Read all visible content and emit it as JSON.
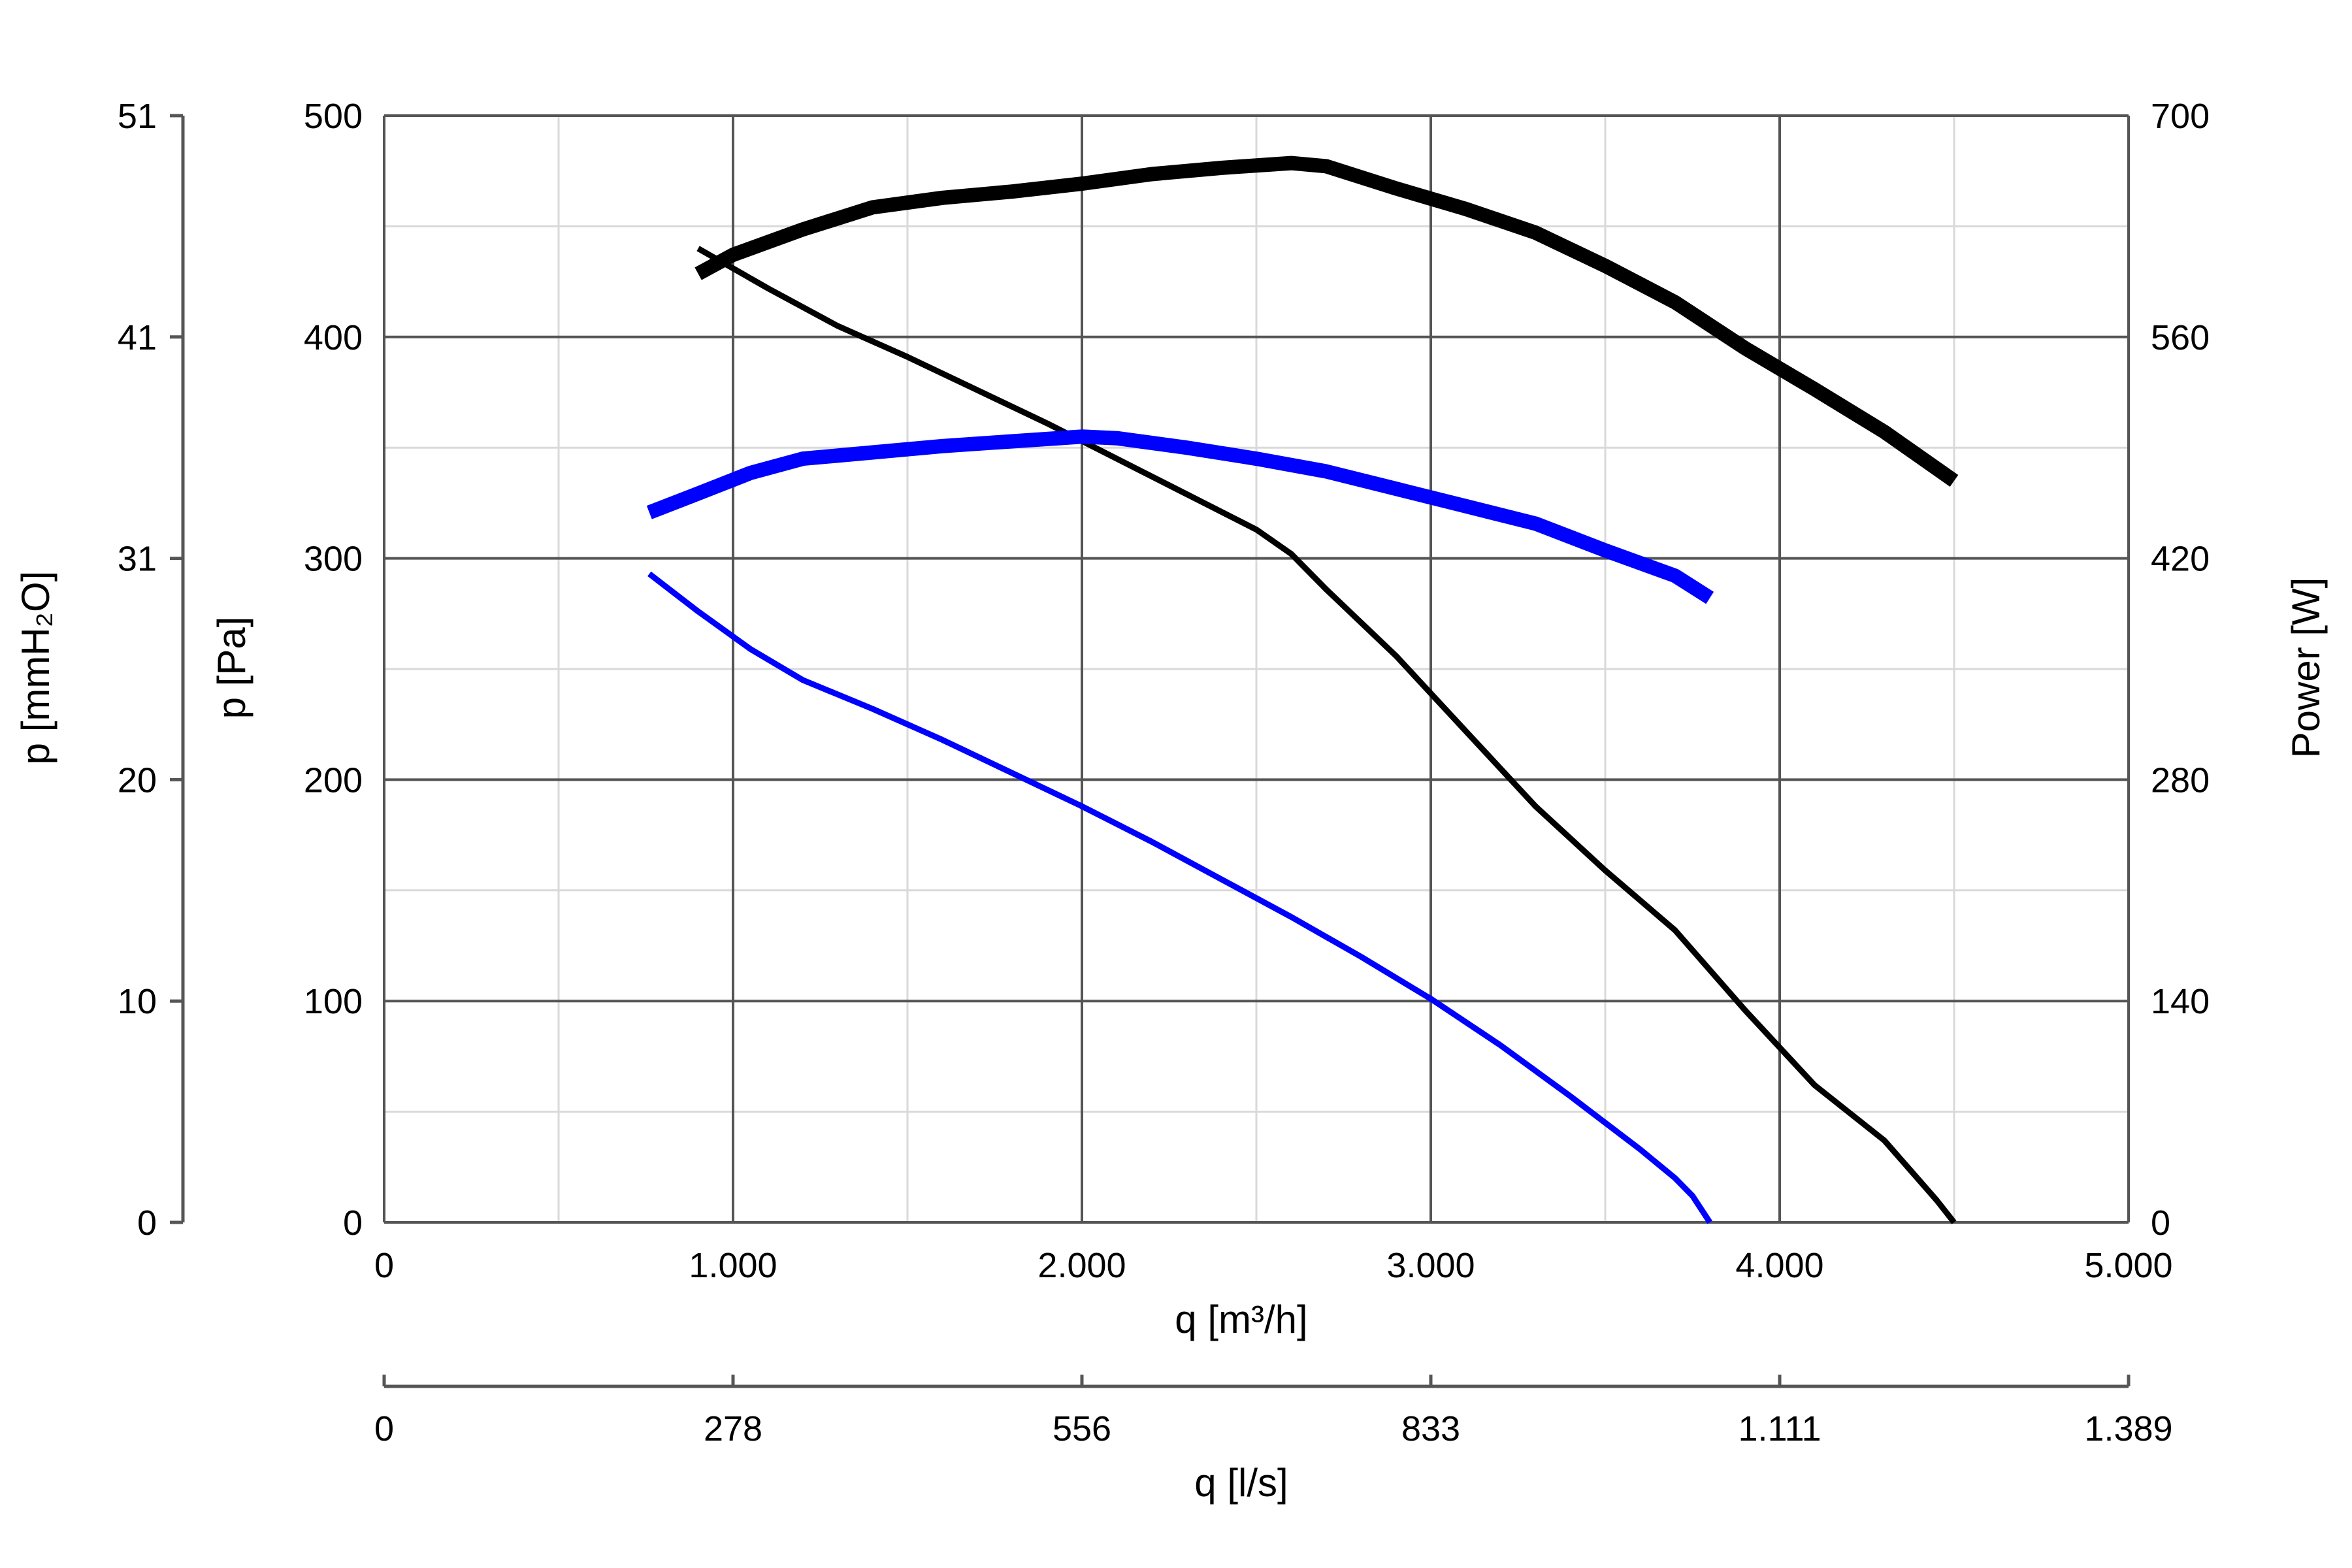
{
  "chart_data": {
    "type": "line",
    "grid": true,
    "legend": "none",
    "x_axis": {
      "label": "q [m³/h]",
      "range": [
        0,
        5000
      ],
      "ticks": [
        0,
        1000,
        2000,
        3000,
        4000,
        5000
      ],
      "tick_labels": [
        "0",
        "1.000",
        "2.000",
        "3.000",
        "4.000",
        "5.000"
      ]
    },
    "x_axis_secondary": {
      "label": "q [l/s]",
      "tick_labels": [
        "0",
        "278",
        "556",
        "833",
        "1.111",
        "1.389"
      ]
    },
    "y_axis_left": {
      "label": "p [Pa]",
      "range": [
        0,
        500
      ],
      "ticks": [
        0,
        100,
        200,
        300,
        400,
        500
      ],
      "tick_labels": [
        "0",
        "100",
        "200",
        "300",
        "400",
        "500"
      ]
    },
    "y_axis_left_secondary": {
      "label": "p [mmH₂O]",
      "tick_labels": [
        "0",
        "10",
        "20",
        "31",
        "41",
        "51"
      ]
    },
    "y_axis_right": {
      "label": "Power [W]",
      "range": [
        0,
        700
      ],
      "ticks": [
        0,
        140,
        280,
        420,
        560,
        700
      ],
      "tick_labels": [
        "0",
        "140",
        "280",
        "420",
        "560",
        "700"
      ]
    },
    "series": [
      {
        "axis": "left",
        "color": "#000000",
        "weight": "thin",
        "points": [
          [
            900,
            440
          ],
          [
            1100,
            422
          ],
          [
            1300,
            405
          ],
          [
            1500,
            391
          ],
          [
            1700,
            376
          ],
          [
            1900,
            361
          ],
          [
            2100,
            345
          ],
          [
            2300,
            329
          ],
          [
            2500,
            313
          ],
          [
            2600,
            302
          ],
          [
            2700,
            286
          ],
          [
            2900,
            256
          ],
          [
            3100,
            222
          ],
          [
            3300,
            188
          ],
          [
            3500,
            159
          ],
          [
            3700,
            132
          ],
          [
            3900,
            96
          ],
          [
            4100,
            62
          ],
          [
            4300,
            37
          ],
          [
            4450,
            10
          ],
          [
            4500,
            0
          ]
        ]
      },
      {
        "axis": "left",
        "color": "#0000ff",
        "weight": "thin",
        "points": [
          [
            760,
            293
          ],
          [
            900,
            276
          ],
          [
            1050,
            259
          ],
          [
            1200,
            245
          ],
          [
            1400,
            232
          ],
          [
            1600,
            218
          ],
          [
            1800,
            203
          ],
          [
            2000,
            188
          ],
          [
            2200,
            172
          ],
          [
            2400,
            155
          ],
          [
            2600,
            138
          ],
          [
            2800,
            120
          ],
          [
            3000,
            101
          ],
          [
            3200,
            80
          ],
          [
            3400,
            57
          ],
          [
            3600,
            33
          ],
          [
            3700,
            20
          ],
          [
            3750,
            12
          ],
          [
            3800,
            0
          ]
        ]
      },
      {
        "axis": "right",
        "color": "#000000",
        "weight": "thick",
        "points": [
          [
            900,
            600
          ],
          [
            1000,
            612
          ],
          [
            1200,
            628
          ],
          [
            1400,
            642
          ],
          [
            1600,
            648
          ],
          [
            1800,
            652
          ],
          [
            2000,
            657
          ],
          [
            2200,
            663
          ],
          [
            2400,
            667
          ],
          [
            2600,
            670
          ],
          [
            2700,
            668
          ],
          [
            2900,
            654
          ],
          [
            3100,
            641
          ],
          [
            3300,
            626
          ],
          [
            3500,
            605
          ],
          [
            3700,
            582
          ],
          [
            3900,
            553
          ],
          [
            4100,
            527
          ],
          [
            4300,
            500
          ],
          [
            4500,
            469
          ]
        ]
      },
      {
        "axis": "right",
        "color": "#0000ff",
        "weight": "thick",
        "points": [
          [
            760,
            449
          ],
          [
            900,
            461
          ],
          [
            1050,
            474
          ],
          [
            1200,
            483
          ],
          [
            1400,
            487
          ],
          [
            1600,
            491
          ],
          [
            1800,
            494
          ],
          [
            2000,
            497
          ],
          [
            2100,
            496
          ],
          [
            2300,
            490
          ],
          [
            2500,
            483
          ],
          [
            2700,
            475
          ],
          [
            2900,
            464
          ],
          [
            3100,
            453
          ],
          [
            3300,
            442
          ],
          [
            3500,
            425
          ],
          [
            3700,
            409
          ],
          [
            3800,
            395
          ]
        ]
      }
    ]
  }
}
